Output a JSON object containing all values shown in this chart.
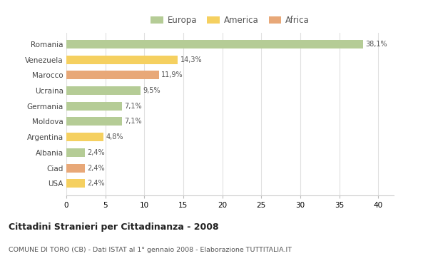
{
  "countries": [
    "Romania",
    "Venezuela",
    "Marocco",
    "Ucraina",
    "Germania",
    "Moldova",
    "Argentina",
    "Albania",
    "Ciad",
    "USA"
  ],
  "values": [
    38.1,
    14.3,
    11.9,
    9.5,
    7.1,
    7.1,
    4.8,
    2.4,
    2.4,
    2.4
  ],
  "labels": [
    "38,1%",
    "14,3%",
    "11,9%",
    "9,5%",
    "7,1%",
    "7,1%",
    "4,8%",
    "2,4%",
    "2,4%",
    "2,4%"
  ],
  "continents": [
    "Europa",
    "America",
    "Africa",
    "Europa",
    "Europa",
    "Europa",
    "America",
    "Europa",
    "Africa",
    "America"
  ],
  "colors": {
    "Europa": "#b5cc96",
    "America": "#f5d060",
    "Africa": "#e8a878"
  },
  "title_bold": "Cittadini Stranieri per Cittadinanza - 2008",
  "subtitle": "COMUNE DI TORO (CB) - Dati ISTAT al 1° gennaio 2008 - Elaborazione TUTTITALIA.IT",
  "xlim": [
    0,
    42
  ],
  "xticks": [
    0,
    5,
    10,
    15,
    20,
    25,
    30,
    35,
    40
  ],
  "background_color": "#ffffff",
  "grid_color": "#e0e0e0",
  "bar_height": 0.55
}
